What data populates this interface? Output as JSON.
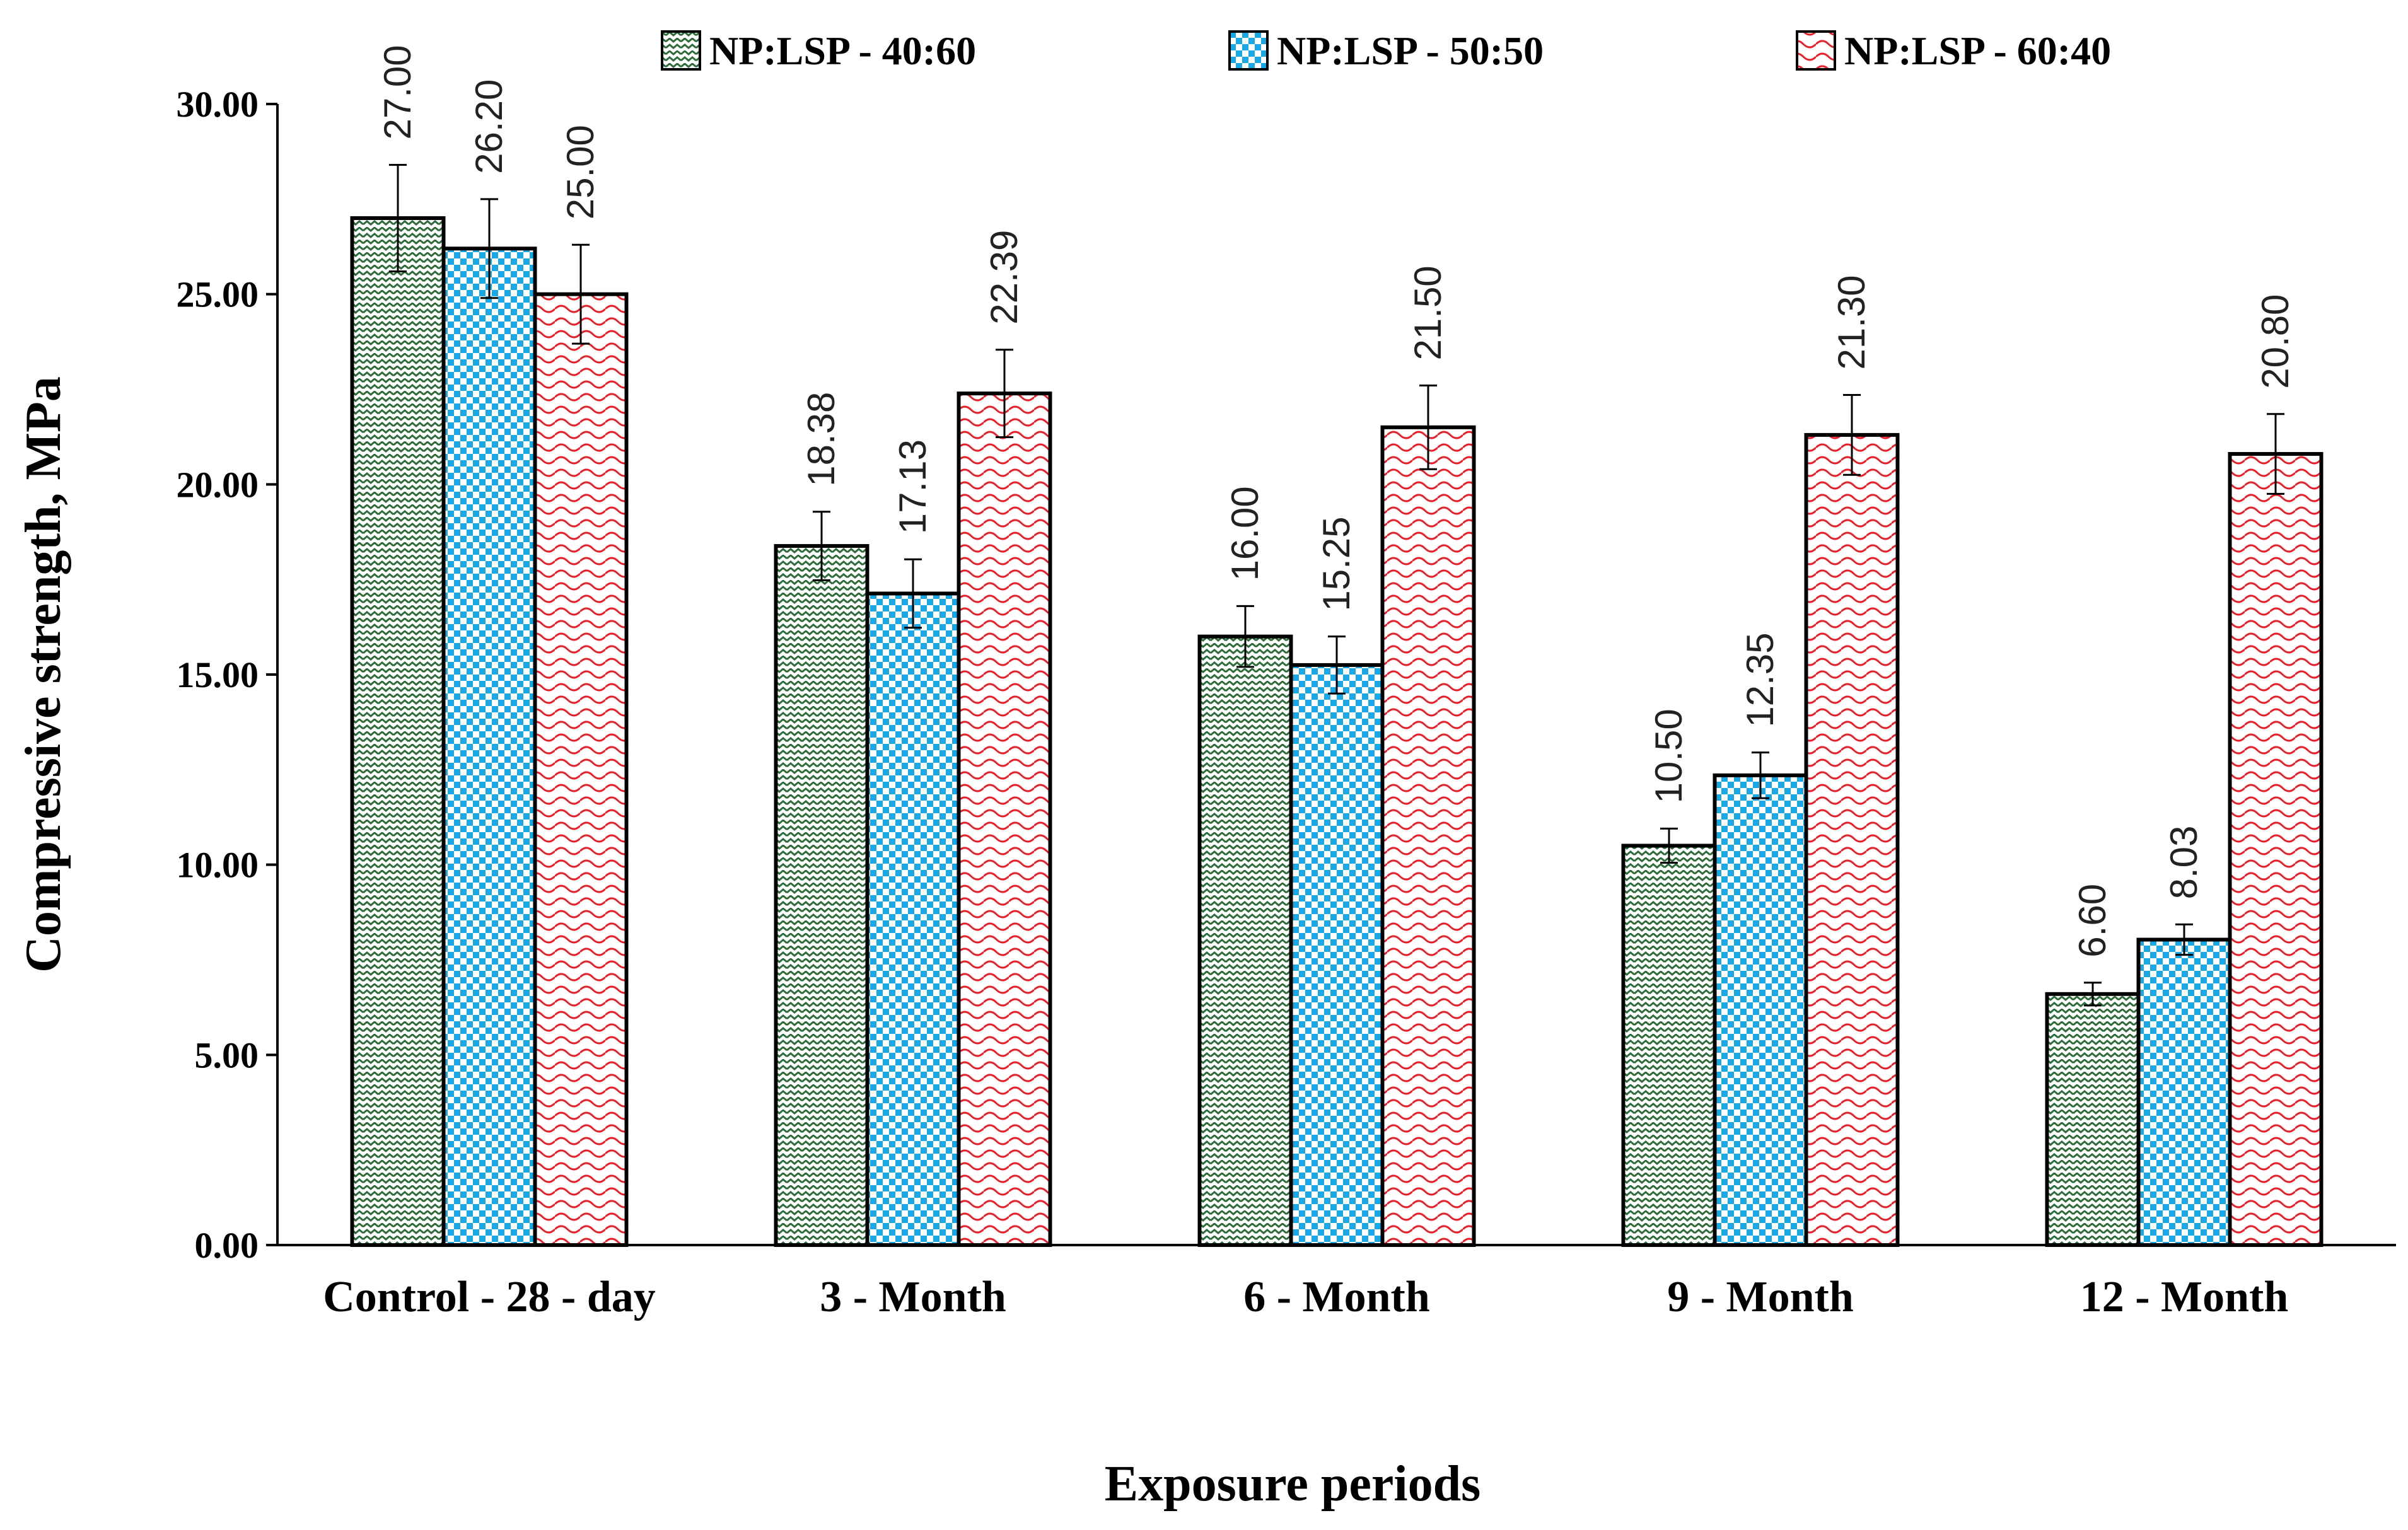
{
  "chart_data": {
    "type": "bar",
    "xlabel": "Exposure periods",
    "ylabel": "Compressive strength, MPa",
    "ylim": [
      0,
      30
    ],
    "yticks": [
      "0.00",
      "5.00",
      "10.00",
      "15.00",
      "20.00",
      "25.00",
      "30.00"
    ],
    "categories": [
      "Control - 28 - day",
      "3 - Month",
      "6 - Month",
      "9 - Month",
      "12 - Month"
    ],
    "legend_position": "top",
    "grid": false,
    "series": [
      {
        "name": "NP:LSP - 40:60",
        "color": "#2e6b3a",
        "pattern": "zigzag",
        "values": [
          27.0,
          18.38,
          16.0,
          10.5,
          6.6
        ],
        "labels": [
          "27.00",
          "18.38",
          "16.00",
          "10.50",
          "6.60"
        ],
        "error": [
          1.4,
          0.9,
          0.8,
          0.45,
          0.3
        ]
      },
      {
        "name": "NP:LSP - 50:50",
        "color": "#1aa7e6",
        "pattern": "checker",
        "values": [
          26.2,
          17.13,
          15.25,
          12.35,
          8.03
        ],
        "labels": [
          "26.20",
          "17.13",
          "15.25",
          "12.35",
          "8.03"
        ],
        "error": [
          1.3,
          0.9,
          0.75,
          0.6,
          0.4
        ]
      },
      {
        "name": "NP:LSP - 60:40",
        "color": "#e8202a",
        "pattern": "wave",
        "values": [
          25.0,
          22.39,
          21.5,
          21.3,
          20.8
        ],
        "labels": [
          "25.00",
          "22.39",
          "21.50",
          "21.30",
          "20.80"
        ],
        "error": [
          1.3,
          1.15,
          1.1,
          1.05,
          1.05
        ]
      }
    ]
  }
}
